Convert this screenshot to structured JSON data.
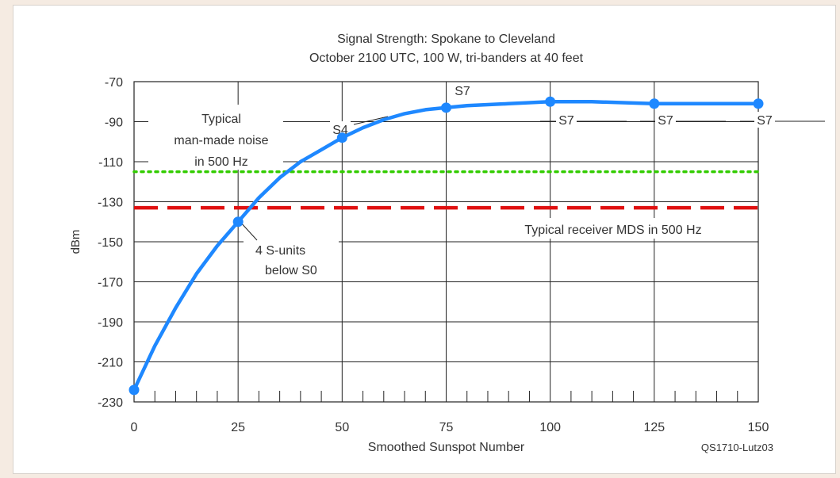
{
  "chart_data": {
    "type": "line",
    "title": "Signal Strength: Spokane to Cleveland",
    "subtitle": "October 2100 UTC, 100 W, tri-banders at 40 feet",
    "xlabel": "Smoothed Sunspot Number",
    "ylabel": "dBm",
    "xlim": [
      0,
      150
    ],
    "ylim": [
      -230,
      -70
    ],
    "x_ticks": [
      0,
      25,
      50,
      75,
      100,
      125,
      150
    ],
    "y_ticks": [
      -70,
      -90,
      -110,
      -130,
      -150,
      -170,
      -190,
      -210,
      -230
    ],
    "grid": true,
    "series": [
      {
        "color": "#1e88ff",
        "curve_x": [
          0,
          5,
          10,
          15,
          20,
          25,
          30,
          35,
          40,
          45,
          50,
          55,
          60,
          65,
          70,
          75,
          80,
          90,
          100,
          110,
          125,
          140,
          150
        ],
        "curve_y": [
          -224,
          -202,
          -183,
          -166,
          -152,
          -140,
          -128,
          -118,
          -110,
          -104,
          -98,
          -93,
          -89,
          -86,
          -84,
          -83,
          -82,
          -81,
          -80,
          -80,
          -81,
          -81,
          -81
        ],
        "markers_x": [
          0,
          25,
          50,
          75,
          100,
          125,
          150
        ],
        "markers_y": [
          -224,
          -140,
          -98,
          -83,
          -80,
          -81,
          -81
        ]
      }
    ],
    "reference_lines": [
      {
        "y": -115,
        "style": "dotted",
        "color": "#33cc00"
      },
      {
        "y": -133,
        "style": "dashed",
        "color": "#e01010"
      }
    ],
    "annotations": {
      "noise": [
        "Typical",
        "man-made noise",
        "in 500 Hz"
      ],
      "mds": "Typical receiver MDS in 500 Hz",
      "below": [
        "4 S-units",
        "below S0"
      ],
      "s_labels": [
        {
          "text": "S4",
          "x": 50,
          "y": -98
        },
        {
          "text": "S7",
          "x": 75,
          "y": -83
        },
        {
          "text": "S7",
          "x": 100,
          "y": -80
        },
        {
          "text": "S7",
          "x": 125,
          "y": -81
        },
        {
          "text": "S7",
          "x": 150,
          "y": -81
        }
      ]
    },
    "credit": "QS1710-Lutz03"
  }
}
